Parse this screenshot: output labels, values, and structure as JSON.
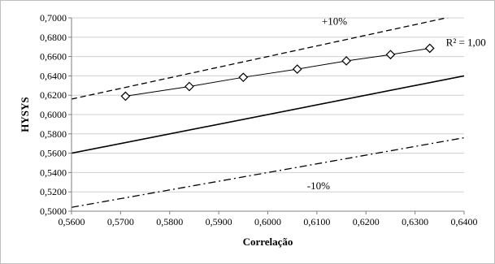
{
  "chart_data": {
    "type": "scatter",
    "xlabel": "Correlação",
    "ylabel": "HYSYS",
    "xlim": [
      0.56,
      0.64
    ],
    "ylim": [
      0.5,
      0.7
    ],
    "x_ticks": [
      "0,5600",
      "0,5700",
      "0,5800",
      "0,5900",
      "0,6000",
      "0,6100",
      "0,6200",
      "0,6300",
      "0,6400"
    ],
    "y_ticks": [
      "0,5000",
      "0,5200",
      "0,5400",
      "0,5600",
      "0,5800",
      "0,6000",
      "0,6200",
      "0,6400",
      "0,6600",
      "0,6800",
      "0,7000"
    ],
    "grid": "horizontal",
    "series": [
      {
        "marker": "diamond",
        "x": [
          0.571,
          0.584,
          0.595,
          0.606,
          0.616,
          0.625,
          0.633
        ],
        "y": [
          0.619,
          0.629,
          0.6385,
          0.647,
          0.6555,
          0.662,
          0.6685
        ]
      }
    ],
    "reference_lines": [
      {
        "style": "solid",
        "factor": 1.0
      },
      {
        "style": "dashed",
        "factor": 1.1
      },
      {
        "style": "dashdot",
        "factor": 0.9
      }
    ],
    "annotations": {
      "plus10": "+10%",
      "minus10": "-10%",
      "r2": "R² = 1,00"
    }
  }
}
